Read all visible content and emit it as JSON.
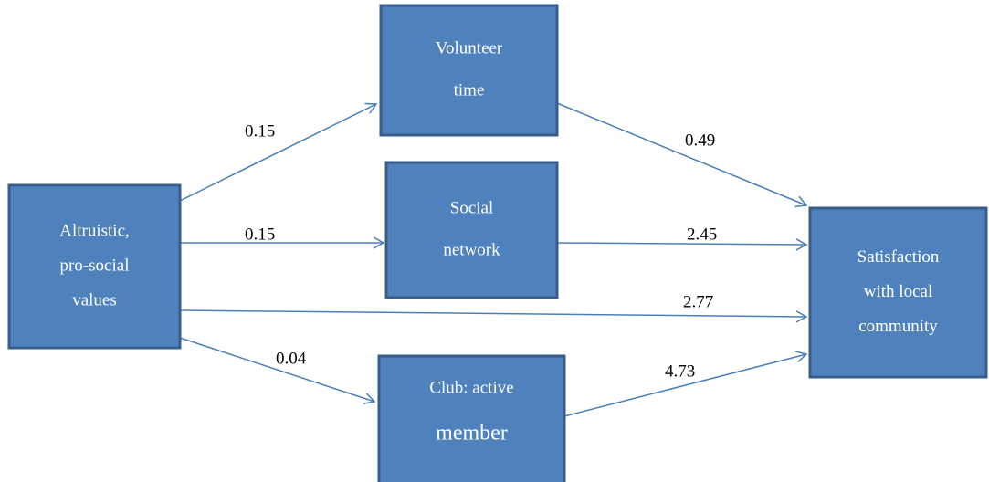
{
  "nodes": [
    {
      "lines": [
        "Altruistic,",
        "pro-social",
        "values"
      ]
    },
    {
      "lines": [
        "Volunteer",
        "time"
      ]
    },
    {
      "lines": [
        "Social",
        "network"
      ]
    },
    {
      "lines": [
        "Club: active",
        "member"
      ]
    },
    {
      "lines": [
        "Satisfaction",
        "with local",
        "community"
      ]
    }
  ],
  "edges": [
    {
      "label": "0.15"
    },
    {
      "label": "0.15"
    },
    {
      "label": "2.77"
    },
    {
      "label": "0.04"
    },
    {
      "label": "0.49"
    },
    {
      "label": "2.45"
    },
    {
      "label": "4.73"
    }
  ]
}
